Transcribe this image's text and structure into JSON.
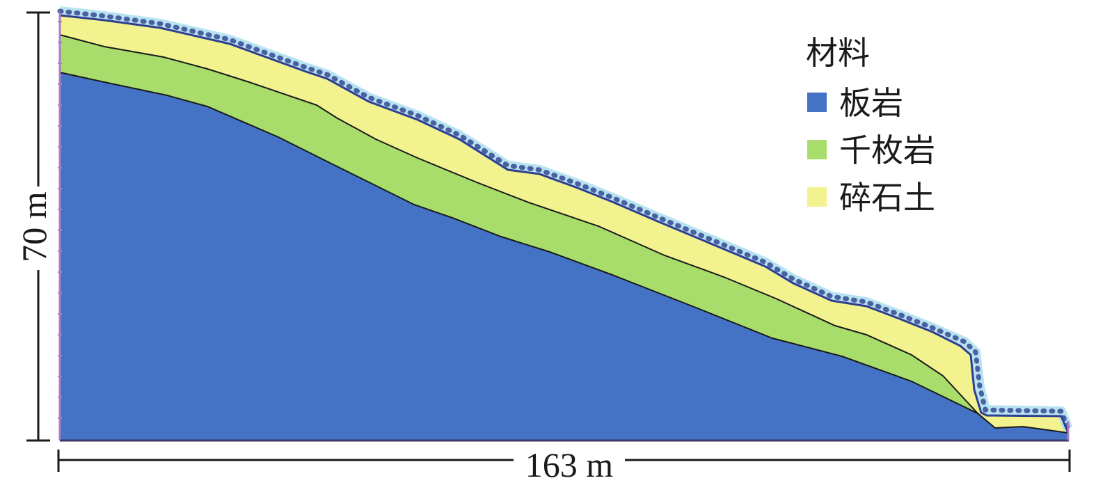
{
  "legend": {
    "title": "材料",
    "items": [
      {
        "label": "板岩",
        "color": "#4472C4"
      },
      {
        "label": "千枚岩",
        "color": "#A9DD6B"
      },
      {
        "label": "碎石土",
        "color": "#F2F28E"
      }
    ]
  },
  "dimensions": {
    "height_label": "70 m",
    "width_label": "163 m"
  },
  "colors": {
    "surface_layer": "#B7E3F0",
    "surface_line": "#2F3E8F",
    "boundary_line": "#1a1a1a",
    "left_boundary": "#B07AC9"
  }
}
